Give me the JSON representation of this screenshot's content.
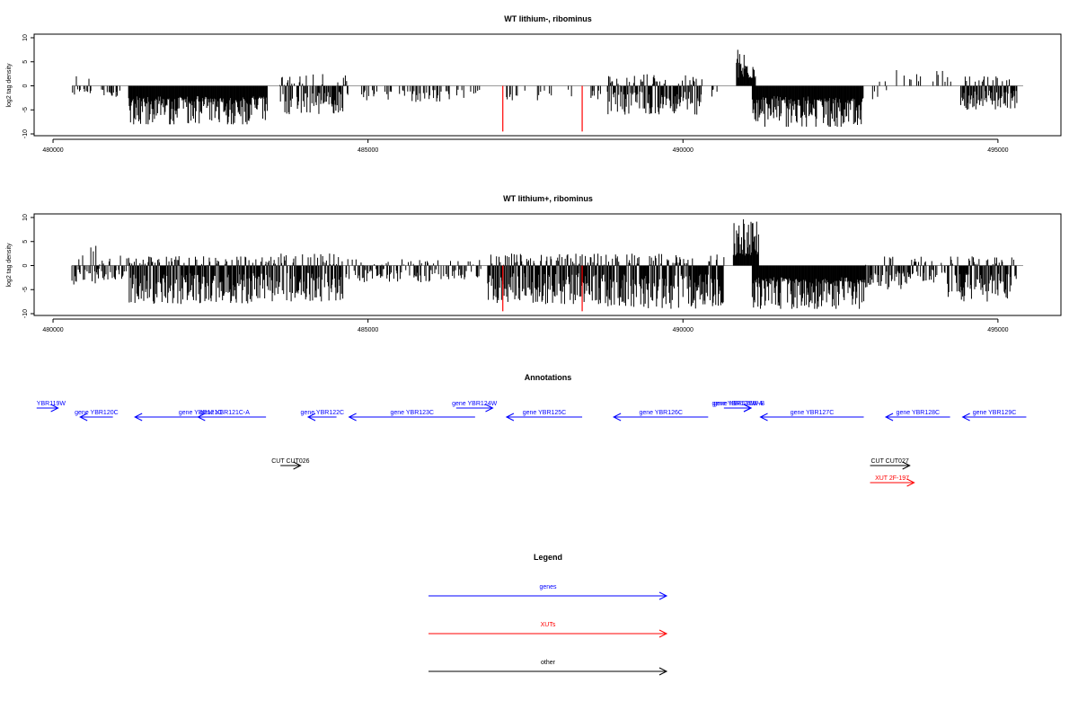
{
  "chart_data": [
    {
      "type": "bar",
      "title": "WT lithium-, ribominus",
      "xlabel": "",
      "ylabel": "log2 tag density",
      "xlim": [
        479700,
        496000
      ],
      "ylim": [
        -10,
        10
      ],
      "xticks": [
        480000,
        485000,
        490000,
        495000
      ],
      "yticks": [
        -10,
        -5,
        0,
        5,
        10
      ],
      "highlights": [
        {
          "x": 487140,
          "y": -9.5,
          "color": "#ff0000"
        },
        {
          "x": 488400,
          "y": -9.5,
          "color": "#ff0000"
        }
      ],
      "segments": [
        {
          "x": [
            480300,
            480600
          ],
          "ymin": -2,
          "ymax": 2.5,
          "direction": "mixed",
          "density": 0.4
        },
        {
          "x": [
            480750,
            481100
          ],
          "ymin": -2.5,
          "ymax": 0,
          "direction": "neg",
          "density": 0.4
        },
        {
          "x": [
            481200,
            483400
          ],
          "ymin": -8,
          "ymax": 0,
          "direction": "neg",
          "density": 1.0
        },
        {
          "x": [
            483600,
            484700
          ],
          "ymin": -6,
          "ymax": 2.5,
          "direction": "mixed",
          "density": 0.7
        },
        {
          "x": [
            484900,
            485400
          ],
          "ymin": -3,
          "ymax": 0,
          "direction": "neg",
          "density": 0.3
        },
        {
          "x": [
            485500,
            486300
          ],
          "ymin": -3.5,
          "ymax": 0,
          "direction": "neg",
          "density": 0.35
        },
        {
          "x": [
            486400,
            486800
          ],
          "ymin": -2.5,
          "ymax": 0,
          "direction": "neg",
          "density": 0.25
        },
        {
          "x": [
            487200,
            488300
          ],
          "ymin": -3,
          "ymax": 0,
          "direction": "neg",
          "density": 0.2
        },
        {
          "x": [
            488500,
            488700
          ],
          "ymin": -3.5,
          "ymax": 0,
          "direction": "neg",
          "density": 0.3
        },
        {
          "x": [
            488800,
            490300
          ],
          "ymin": -6,
          "ymax": 2.5,
          "direction": "mixed",
          "density": 0.9
        },
        {
          "x": [
            490450,
            490550
          ],
          "ymin": -2.5,
          "ymax": 0,
          "direction": "neg",
          "density": 0.3
        },
        {
          "x": [
            490850,
            491150
          ],
          "ymin": 0,
          "ymax": 8,
          "direction": "pos",
          "density": 1.0
        },
        {
          "x": [
            491100,
            492850
          ],
          "ymin": -8.5,
          "ymax": 0,
          "direction": "neg",
          "density": 1.0
        },
        {
          "x": [
            492850,
            493300
          ],
          "ymin": -3,
          "ymax": 1.5,
          "direction": "mixed",
          "density": 0.2
        },
        {
          "x": [
            493300,
            494300
          ],
          "ymin": 0,
          "ymax": 3.5,
          "direction": "pos",
          "density": 0.12
        },
        {
          "x": [
            494400,
            495300
          ],
          "ymin": -5,
          "ymax": 2,
          "direction": "mixed",
          "density": 0.8
        }
      ]
    },
    {
      "type": "bar",
      "title": "WT lithium+, ribominus",
      "xlabel": "",
      "ylabel": "log2 tag density",
      "xlim": [
        479700,
        496000
      ],
      "ylim": [
        -10,
        10
      ],
      "xticks": [
        480000,
        485000,
        490000,
        495000
      ],
      "yticks": [
        -10,
        -5,
        0,
        5,
        10
      ],
      "highlights": [
        {
          "x": 487140,
          "y": -9.5,
          "color": "#ff0000"
        },
        {
          "x": 488400,
          "y": -9.5,
          "color": "#ff0000"
        }
      ],
      "segments": [
        {
          "x": [
            480300,
            480700
          ],
          "ymin": -4,
          "ymax": 4.5,
          "direction": "mixed",
          "density": 0.6
        },
        {
          "x": [
            480700,
            481200
          ],
          "ymin": -3,
          "ymax": 2.5,
          "direction": "mixed",
          "density": 0.45
        },
        {
          "x": [
            481200,
            483600
          ],
          "ymin": -8,
          "ymax": 2,
          "direction": "mixed",
          "density": 1.0
        },
        {
          "x": [
            483600,
            484600
          ],
          "ymin": -7.5,
          "ymax": 2.5,
          "direction": "mixed",
          "density": 0.9
        },
        {
          "x": [
            484600,
            486300
          ],
          "ymin": -3.5,
          "ymax": 1.5,
          "direction": "mixed",
          "density": 0.45
        },
        {
          "x": [
            486300,
            486800
          ],
          "ymin": -3,
          "ymax": 1.5,
          "direction": "mixed",
          "density": 0.45
        },
        {
          "x": [
            486900,
            488450
          ],
          "ymin": -8,
          "ymax": 2.5,
          "direction": "mixed",
          "density": 1.0
        },
        {
          "x": [
            488450,
            490650
          ],
          "ymin": -9,
          "ymax": 2.5,
          "direction": "mixed",
          "density": 1.0
        },
        {
          "x": [
            490800,
            491200
          ],
          "ymin": 0,
          "ymax": 10,
          "direction": "pos",
          "density": 1.0
        },
        {
          "x": [
            491100,
            492900
          ],
          "ymin": -9,
          "ymax": 0,
          "direction": "neg",
          "density": 1.0
        },
        {
          "x": [
            492900,
            493500
          ],
          "ymin": -5,
          "ymax": 2.5,
          "direction": "mixed",
          "density": 0.7
        },
        {
          "x": [
            493500,
            494200
          ],
          "ymin": -4,
          "ymax": 2,
          "direction": "mixed",
          "density": 0.5
        },
        {
          "x": [
            494200,
            495300
          ],
          "ymin": -7.5,
          "ymax": 2,
          "direction": "mixed",
          "density": 0.9
        }
      ]
    }
  ],
  "annotations": {
    "title": "Annotations",
    "features": [
      {
        "label": "YBR119W",
        "start": 479740,
        "end": 480080,
        "strand": "+",
        "row": 0,
        "color": "#0000ff"
      },
      {
        "label": "gene YBR120C",
        "start": 480430,
        "end": 480950,
        "strand": "-",
        "row": 1,
        "color": "#0000ff"
      },
      {
        "label": "gene YBR121C",
        "start": 481300,
        "end": 483380,
        "strand": "-",
        "row": 1,
        "color": "#0000ff"
      },
      {
        "label": "gene YBR121C-A",
        "start": 482300,
        "end": 483380,
        "strand": "-",
        "row": 1,
        "color": "#0000ff"
      },
      {
        "label": "gene YBR122C",
        "start": 484050,
        "end": 484500,
        "strand": "-",
        "row": 1,
        "color": "#0000ff"
      },
      {
        "label": "gene YBR123C",
        "start": 484700,
        "end": 486700,
        "strand": "-",
        "row": 1,
        "color": "#0000ff"
      },
      {
        "label": "gene YBR124W",
        "start": 486400,
        "end": 486980,
        "strand": "+",
        "row": 0,
        "color": "#0000ff"
      },
      {
        "label": "gene YBR125C",
        "start": 487200,
        "end": 488400,
        "strand": "-",
        "row": 1,
        "color": "#0000ff"
      },
      {
        "label": "gene YBR126C",
        "start": 488900,
        "end": 490400,
        "strand": "-",
        "row": 1,
        "color": "#0000ff"
      },
      {
        "label": "gene YBR126W-A",
        "start": 490650,
        "end": 491080,
        "strand": "+",
        "row": 0,
        "color": "#0000ff"
      },
      {
        "label": "gene YBR126W-B",
        "start": 490700,
        "end": 491080,
        "strand": "+",
        "row": 0,
        "color": "#0000ff"
      },
      {
        "label": "gene YBR127C",
        "start": 491230,
        "end": 492870,
        "strand": "-",
        "row": 1,
        "color": "#0000ff"
      },
      {
        "label": "gene YBR128C",
        "start": 493220,
        "end": 494240,
        "strand": "-",
        "row": 1,
        "color": "#0000ff"
      },
      {
        "label": "gene YBR129C",
        "start": 494440,
        "end": 495450,
        "strand": "-",
        "row": 1,
        "color": "#0000ff"
      },
      {
        "label": "CUT CUT026",
        "start": 483610,
        "end": 483930,
        "strand": "+",
        "row": 2,
        "color": "#000000"
      },
      {
        "label": "CUT CUT027",
        "start": 492970,
        "end": 493600,
        "strand": "+",
        "row": 2,
        "color": "#000000"
      },
      {
        "label": "XUT 2F-197",
        "start": 492970,
        "end": 493670,
        "strand": "+",
        "row": 3,
        "color": "#ff0000"
      }
    ]
  },
  "legend": {
    "title": "Legend",
    "items": [
      {
        "label": "genes",
        "color": "#0000ff"
      },
      {
        "label": "XUTs",
        "color": "#ff0000"
      },
      {
        "label": "other",
        "color": "#000000"
      }
    ]
  }
}
